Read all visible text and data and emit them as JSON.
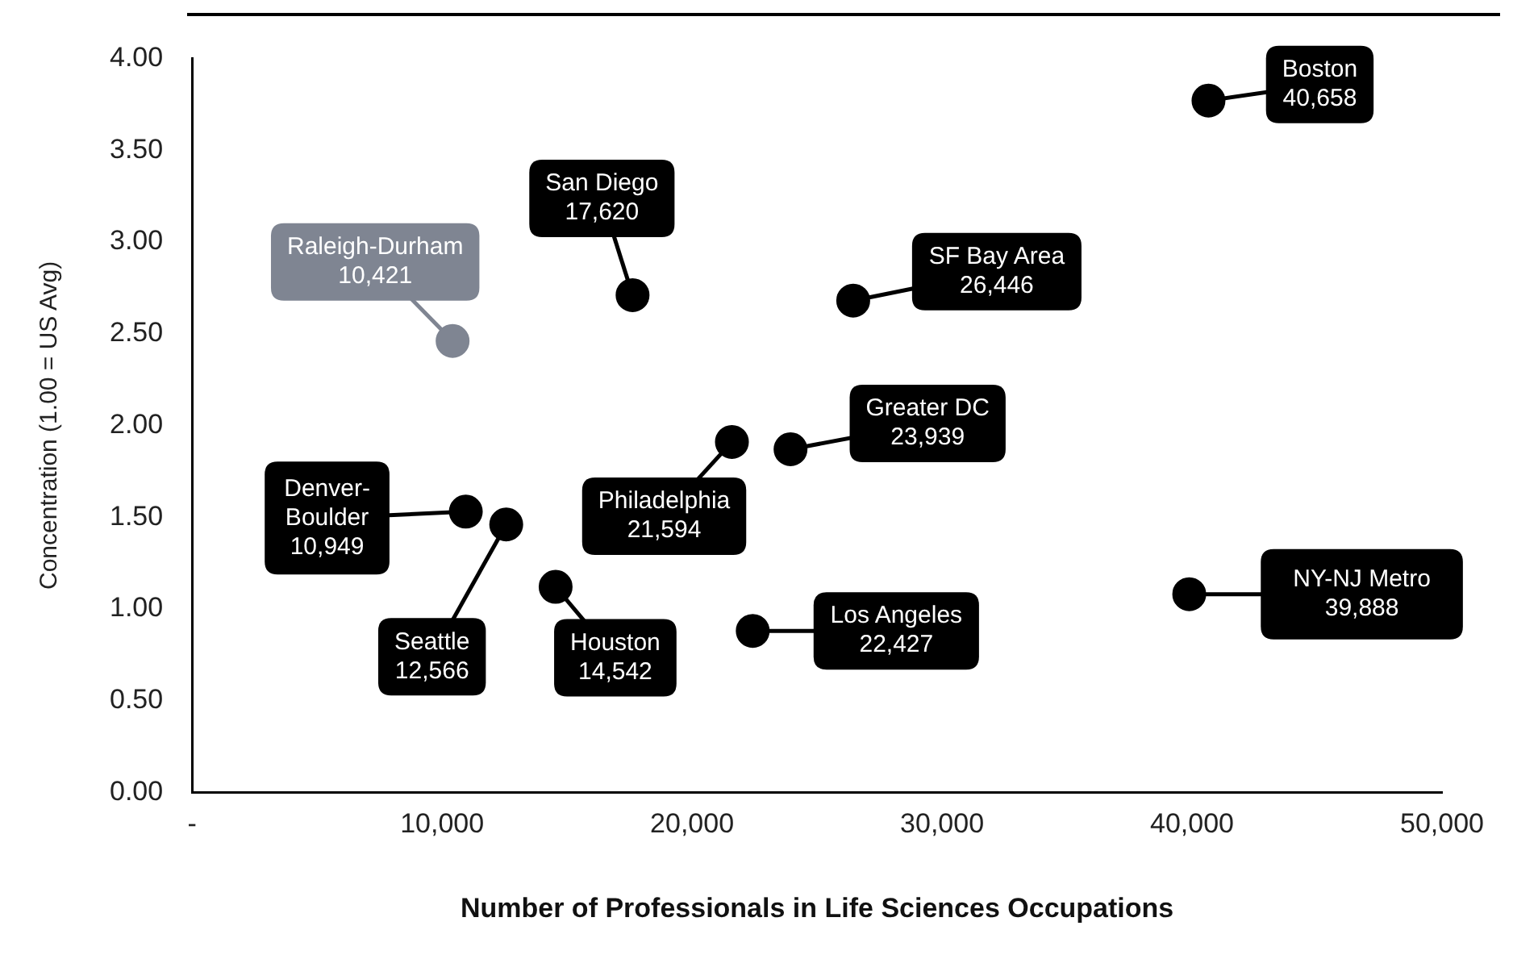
{
  "chart_data": {
    "type": "scatter",
    "xlabel": "Number of Professionals in Life Sciences Occupations",
    "ylabel": "Concentration (1.00 = US Avg)",
    "xlim": [
      0,
      50000
    ],
    "xticks": [
      {
        "value": 0,
        "label": "-"
      },
      {
        "value": 10000,
        "label": "10,000"
      },
      {
        "value": 20000,
        "label": "20,000"
      },
      {
        "value": 30000,
        "label": "30,000"
      },
      {
        "value": 40000,
        "label": "40,000"
      },
      {
        "value": 50000,
        "label": "50,000"
      }
    ],
    "ylim": [
      0,
      4
    ],
    "yticks": [
      {
        "value": 0,
        "label": "0.00"
      },
      {
        "value": 0.5,
        "label": "0.50"
      },
      {
        "value": 1,
        "label": "1.00"
      },
      {
        "value": 1.5,
        "label": "1.50"
      },
      {
        "value": 2,
        "label": "2.00"
      },
      {
        "value": 2.5,
        "label": "2.50"
      },
      {
        "value": 3,
        "label": "3.00"
      },
      {
        "value": 3.5,
        "label": "3.50"
      },
      {
        "value": 4,
        "label": "4.00"
      }
    ],
    "grid": false,
    "legend": false,
    "marker": "circle",
    "series": [
      {
        "name": "Boston",
        "color": "#000000",
        "x": [
          40658
        ],
        "values": [
          3.77
        ]
      },
      {
        "name": "San Diego",
        "color": "#000000",
        "x": [
          17620
        ],
        "values": [
          2.71
        ]
      },
      {
        "name": "Raleigh-Durham",
        "color": "#7f8592",
        "x": [
          10421
        ],
        "values": [
          2.46
        ]
      },
      {
        "name": "SF Bay Area",
        "color": "#000000",
        "x": [
          26446
        ],
        "values": [
          2.68
        ]
      },
      {
        "name": "Greater DC",
        "color": "#000000",
        "x": [
          23939
        ],
        "values": [
          1.87
        ]
      },
      {
        "name": "Philadelphia",
        "color": "#000000",
        "x": [
          21594
        ],
        "values": [
          1.91
        ]
      },
      {
        "name": "Denver-Boulder",
        "color": "#000000",
        "x": [
          10949
        ],
        "values": [
          1.53
        ]
      },
      {
        "name": "Seattle",
        "color": "#000000",
        "x": [
          12566
        ],
        "values": [
          1.46
        ]
      },
      {
        "name": "Houston",
        "color": "#000000",
        "x": [
          14542
        ],
        "values": [
          1.12
        ]
      },
      {
        "name": "Los Angeles",
        "color": "#000000",
        "x": [
          22427
        ],
        "values": [
          0.88
        ]
      },
      {
        "name": "NY-NJ Metro",
        "color": "#000000",
        "x": [
          39888
        ],
        "values": [
          1.08
        ]
      }
    ],
    "annotations": [
      {
        "text": "40,658",
        "x": 40658,
        "y": 3.77
      },
      {
        "text": "17,620",
        "x": 17620,
        "y": 2.71
      },
      {
        "text": "10,421",
        "x": 10421,
        "y": 2.46
      },
      {
        "text": "26,446",
        "x": 26446,
        "y": 2.68
      },
      {
        "text": "23,939",
        "x": 23939,
        "y": 1.87
      },
      {
        "text": "21,594",
        "x": 21594,
        "y": 1.91
      },
      {
        "text": "10,949",
        "x": 10949,
        "y": 1.53
      },
      {
        "text": "12,566",
        "x": 12566,
        "y": 1.46
      },
      {
        "text": "14,542",
        "x": 14542,
        "y": 1.12
      },
      {
        "text": "22,427",
        "x": 22427,
        "y": 0.88
      },
      {
        "text": "39,888",
        "x": 39888,
        "y": 1.08
      }
    ]
  }
}
